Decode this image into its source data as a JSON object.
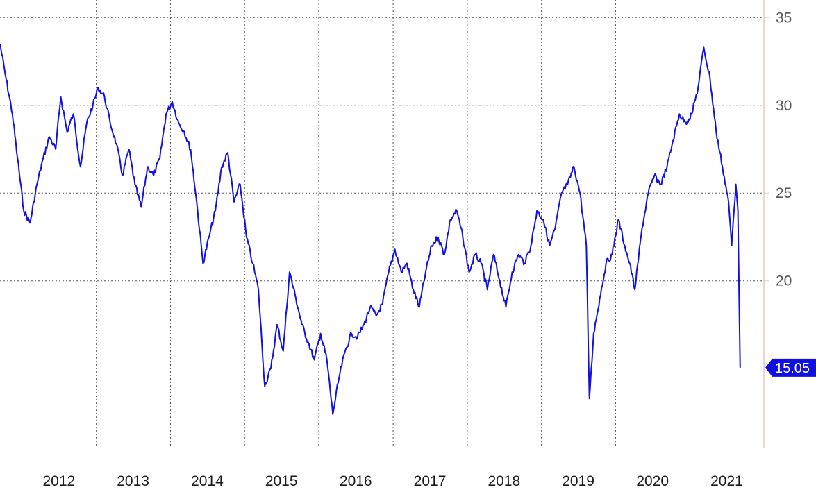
{
  "chart_data": {
    "type": "line",
    "title": "",
    "xlabel": "",
    "ylabel": "",
    "ylim": [
      10.5,
      36
    ],
    "xlim": [
      "2011-09-15",
      "2021-12-31"
    ],
    "x_ticks": [
      "2012",
      "2013",
      "2014",
      "2015",
      "2016",
      "2017",
      "2018",
      "2019",
      "2020",
      "2021"
    ],
    "y_ticks": [
      20,
      25,
      30,
      35
    ],
    "grid": true,
    "colors": {
      "line": "#1010e0",
      "grid": "#555555",
      "axis": "#e8c8c8",
      "last_label_bg": "#1010e0"
    },
    "last_value_label": "15.05",
    "series": [
      {
        "name": "",
        "points": [
          [
            "2011-09-15",
            33.5
          ],
          [
            "2011-10-15",
            31.5
          ],
          [
            "2011-11-15",
            29.5
          ],
          [
            "2011-12-10",
            27.0
          ],
          [
            "2012-01-10",
            24.0
          ],
          [
            "2012-02-10",
            23.3
          ],
          [
            "2012-03-15",
            25.5
          ],
          [
            "2012-04-15",
            27.0
          ],
          [
            "2012-05-15",
            28.2
          ],
          [
            "2012-06-15",
            27.5
          ],
          [
            "2012-07-10",
            30.5
          ],
          [
            "2012-08-10",
            28.5
          ],
          [
            "2012-09-10",
            29.5
          ],
          [
            "2012-10-15",
            26.5
          ],
          [
            "2012-11-15",
            29.0
          ],
          [
            "2012-12-15",
            30.0
          ],
          [
            "2013-01-10",
            31.0
          ],
          [
            "2013-02-10",
            30.5
          ],
          [
            "2013-03-10",
            29.0
          ],
          [
            "2013-04-10",
            27.8
          ],
          [
            "2013-05-10",
            26.0
          ],
          [
            "2013-06-10",
            27.5
          ],
          [
            "2013-07-10",
            25.5
          ],
          [
            "2013-08-10",
            24.2
          ],
          [
            "2013-09-10",
            26.5
          ],
          [
            "2013-10-10",
            26.0
          ],
          [
            "2013-11-10",
            27.0
          ],
          [
            "2013-12-10",
            29.5
          ],
          [
            "2014-01-10",
            30.2
          ],
          [
            "2014-02-10",
            29.0
          ],
          [
            "2014-03-10",
            28.5
          ],
          [
            "2014-04-10",
            27.5
          ],
          [
            "2014-05-10",
            24.5
          ],
          [
            "2014-06-10",
            21.0
          ],
          [
            "2014-07-10",
            22.5
          ],
          [
            "2014-08-10",
            24.0
          ],
          [
            "2014-09-10",
            26.5
          ],
          [
            "2014-10-10",
            27.3
          ],
          [
            "2014-11-10",
            24.5
          ],
          [
            "2014-12-10",
            25.5
          ],
          [
            "2015-01-10",
            22.5
          ],
          [
            "2015-02-10",
            21.0
          ],
          [
            "2015-03-10",
            19.5
          ],
          [
            "2015-04-10",
            14.0
          ],
          [
            "2015-05-10",
            15.0
          ],
          [
            "2015-06-10",
            17.5
          ],
          [
            "2015-07-10",
            16.0
          ],
          [
            "2015-08-10",
            20.5
          ],
          [
            "2015-09-10",
            19.0
          ],
          [
            "2015-10-10",
            17.5
          ],
          [
            "2015-11-10",
            16.5
          ],
          [
            "2015-12-10",
            15.5
          ],
          [
            "2016-01-10",
            17.0
          ],
          [
            "2016-02-10",
            15.5
          ],
          [
            "2016-03-10",
            12.4
          ],
          [
            "2016-04-10",
            14.5
          ],
          [
            "2016-05-10",
            16.0
          ],
          [
            "2016-06-10",
            17.0
          ],
          [
            "2016-07-10",
            16.8
          ],
          [
            "2016-08-10",
            17.5
          ],
          [
            "2016-09-10",
            18.5
          ],
          [
            "2016-10-10",
            18.0
          ],
          [
            "2016-11-10",
            18.7
          ],
          [
            "2016-12-10",
            20.5
          ],
          [
            "2017-01-10",
            21.8
          ],
          [
            "2017-02-10",
            20.5
          ],
          [
            "2017-03-10",
            21.0
          ],
          [
            "2017-04-10",
            19.5
          ],
          [
            "2017-05-10",
            18.5
          ],
          [
            "2017-06-10",
            20.5
          ],
          [
            "2017-07-10",
            22.0
          ],
          [
            "2017-08-10",
            22.5
          ],
          [
            "2017-09-10",
            21.5
          ],
          [
            "2017-10-10",
            23.5
          ],
          [
            "2017-11-10",
            24.0
          ],
          [
            "2017-12-10",
            22.5
          ],
          [
            "2018-01-10",
            20.5
          ],
          [
            "2018-02-10",
            21.5
          ],
          [
            "2018-03-10",
            21.0
          ],
          [
            "2018-04-10",
            19.5
          ],
          [
            "2018-05-10",
            21.5
          ],
          [
            "2018-06-10",
            20.0
          ],
          [
            "2018-07-10",
            18.5
          ],
          [
            "2018-08-10",
            20.5
          ],
          [
            "2018-09-10",
            21.5
          ],
          [
            "2018-10-10",
            21.0
          ],
          [
            "2018-11-10",
            22.0
          ],
          [
            "2018-12-10",
            24.0
          ],
          [
            "2019-01-10",
            23.5
          ],
          [
            "2019-02-10",
            22.0
          ],
          [
            "2019-03-10",
            23.0
          ],
          [
            "2019-04-10",
            25.0
          ],
          [
            "2019-05-10",
            25.5
          ],
          [
            "2019-06-10",
            26.5
          ],
          [
            "2019-07-10",
            25.0
          ],
          [
            "2019-08-10",
            22.0
          ],
          [
            "2019-08-25",
            13.3
          ],
          [
            "2019-09-15",
            17.0
          ],
          [
            "2019-10-15",
            19.0
          ],
          [
            "2019-11-15",
            21.0
          ],
          [
            "2019-12-15",
            21.5
          ],
          [
            "2020-01-15",
            23.5
          ],
          [
            "2020-02-15",
            22.0
          ],
          [
            "2020-03-10",
            21.0
          ],
          [
            "2020-04-05",
            19.5
          ],
          [
            "2020-05-10",
            23.0
          ],
          [
            "2020-06-10",
            25.0
          ],
          [
            "2020-07-10",
            26.0
          ],
          [
            "2020-08-10",
            25.5
          ],
          [
            "2020-09-10",
            26.5
          ],
          [
            "2020-10-10",
            28.0
          ],
          [
            "2020-11-10",
            29.5
          ],
          [
            "2020-12-10",
            29.0
          ],
          [
            "2021-01-10",
            29.5
          ],
          [
            "2021-02-10",
            31.0
          ],
          [
            "2021-03-10",
            33.3
          ],
          [
            "2021-04-10",
            31.5
          ],
          [
            "2021-05-10",
            28.5
          ],
          [
            "2021-06-10",
            26.5
          ],
          [
            "2021-07-10",
            24.5
          ],
          [
            "2021-07-25",
            22.0
          ],
          [
            "2021-08-15",
            25.5
          ],
          [
            "2021-08-25",
            24.0
          ],
          [
            "2021-09-05",
            15.05
          ]
        ]
      }
    ]
  }
}
